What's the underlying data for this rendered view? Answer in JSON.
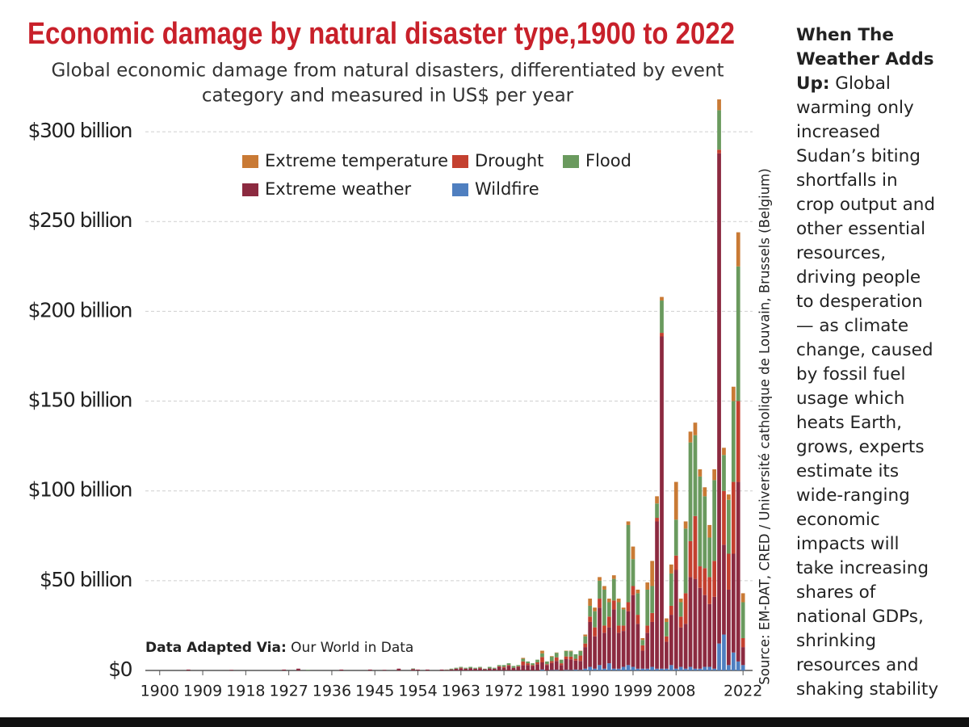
{
  "chart_data": {
    "type": "stacked-bar",
    "title": "Economic damage by natural disaster type,1900 to 2022",
    "subtitle": [
      "Global economic damage from natural disasters, differentiated by event",
      "category and measured in US$ per year"
    ],
    "x": [
      1900,
      1901,
      1902,
      1903,
      1904,
      1905,
      1906,
      1907,
      1908,
      1909,
      1910,
      1911,
      1912,
      1913,
      1914,
      1915,
      1916,
      1917,
      1918,
      1919,
      1920,
      1921,
      1922,
      1923,
      1924,
      1925,
      1926,
      1927,
      1928,
      1929,
      1930,
      1931,
      1932,
      1933,
      1934,
      1935,
      1936,
      1937,
      1938,
      1939,
      1940,
      1941,
      1942,
      1943,
      1944,
      1945,
      1946,
      1947,
      1948,
      1949,
      1950,
      1951,
      1952,
      1953,
      1954,
      1955,
      1956,
      1957,
      1958,
      1959,
      1960,
      1961,
      1962,
      1963,
      1964,
      1965,
      1966,
      1967,
      1968,
      1969,
      1970,
      1971,
      1972,
      1973,
      1974,
      1975,
      1976,
      1977,
      1978,
      1979,
      1980,
      1981,
      1982,
      1983,
      1984,
      1985,
      1986,
      1987,
      1988,
      1989,
      1990,
      1991,
      1992,
      1993,
      1994,
      1995,
      1996,
      1997,
      1998,
      1999,
      2000,
      2001,
      2002,
      2003,
      2004,
      2005,
      2006,
      2007,
      2008,
      2009,
      2010,
      2011,
      2012,
      2013,
      2014,
      2015,
      2016,
      2017,
      2018,
      2019,
      2020,
      2021,
      2022
    ],
    "series": [
      {
        "name": "Wildfire",
        "color": "#4f7fc0",
        "values": [
          0,
          0,
          0,
          0,
          0,
          0,
          0,
          0,
          0,
          0,
          0,
          0,
          0,
          0,
          0,
          0,
          0,
          0,
          0,
          0,
          0,
          0,
          0,
          0,
          0,
          0,
          0,
          0,
          0,
          0,
          0,
          0,
          0,
          0,
          0,
          0,
          0,
          0,
          0,
          0,
          0,
          0,
          0,
          0,
          0,
          0,
          0,
          0,
          0,
          0,
          0,
          0,
          0,
          0,
          0,
          0,
          0,
          0,
          0,
          0,
          0,
          0,
          0,
          0,
          0,
          0,
          0,
          0,
          0,
          0,
          0,
          0,
          0,
          0,
          0,
          0,
          0,
          0,
          0,
          0,
          0.5,
          0,
          0.2,
          0.3,
          0,
          0.3,
          0.2,
          0.5,
          0.3,
          1,
          2,
          1,
          3,
          1,
          4,
          1,
          1,
          2,
          3,
          2,
          1,
          1,
          1,
          2,
          1,
          1,
          1,
          3,
          1,
          2,
          1,
          2,
          1,
          1,
          2,
          2,
          1,
          15,
          20,
          3,
          10,
          5,
          3
        ]
      },
      {
        "name": "Extreme weather",
        "color": "#8c2a40",
        "values": [
          0,
          0,
          0,
          0,
          0,
          0,
          0.5,
          0,
          0,
          0,
          0,
          0,
          0,
          0,
          0,
          0.3,
          0,
          0,
          0,
          0,
          0,
          0,
          0,
          0,
          0,
          0,
          0.5,
          0,
          0,
          1,
          0,
          0,
          0,
          0,
          0,
          0,
          0,
          0,
          0.5,
          0,
          0,
          0,
          0,
          0,
          0.5,
          0,
          0,
          0.3,
          0,
          0,
          1,
          0,
          0,
          0.8,
          0.5,
          0,
          0.5,
          0,
          0,
          0.5,
          0.3,
          0.6,
          1,
          1.2,
          1,
          1.3,
          1,
          1.2,
          0.7,
          1.2,
          1,
          2,
          1.5,
          2.5,
          1.5,
          2,
          3,
          3,
          2.5,
          3.5,
          4,
          3,
          4,
          5,
          3,
          6,
          6,
          5,
          5,
          12,
          25,
          18,
          32,
          20,
          20,
          33,
          20,
          20,
          30,
          40,
          25,
          10,
          20,
          25,
          82,
          185,
          15,
          28,
          55,
          22,
          25,
          50,
          50,
          45,
          40,
          35,
          40,
          273,
          50,
          42,
          55,
          100,
          10
        ]
      },
      {
        "name": "Drought",
        "color": "#c4402f",
        "values": [
          0,
          0,
          0,
          0,
          0,
          0,
          0,
          0,
          0,
          0,
          0,
          0,
          0,
          0,
          0,
          0,
          0,
          0,
          0,
          0,
          0,
          0,
          0,
          0,
          0,
          0,
          0,
          0,
          0,
          0,
          0,
          0,
          0,
          0,
          0,
          0,
          0,
          0,
          0,
          0,
          0,
          0,
          0,
          0,
          0,
          0,
          0,
          0,
          0,
          0,
          0,
          0,
          0,
          0,
          0,
          0,
          0,
          0,
          0,
          0,
          0,
          0,
          0,
          0.3,
          0,
          0,
          0,
          0.3,
          0,
          0,
          0,
          0.3,
          0.5,
          0.5,
          0,
          0.3,
          2,
          1,
          0.5,
          1,
          3,
          0.5,
          1,
          2,
          1,
          1.5,
          1.5,
          1,
          3,
          2,
          3,
          5,
          5,
          4,
          6,
          5,
          4,
          3,
          5,
          5,
          5,
          3,
          4,
          5,
          2,
          2,
          3,
          5,
          8,
          6,
          17,
          20,
          35,
          12,
          15,
          15,
          20,
          2,
          30,
          20,
          40,
          45,
          5
        ]
      },
      {
        "name": "Flood",
        "color": "#6a9a5e",
        "values": [
          0,
          0,
          0,
          0,
          0,
          0,
          0,
          0,
          0,
          0,
          0,
          0,
          0,
          0,
          0,
          0,
          0,
          0,
          0,
          0,
          0,
          0,
          0,
          0,
          0,
          0,
          0,
          0,
          0,
          0,
          0,
          0.3,
          0,
          0,
          0,
          0,
          0,
          0,
          0,
          0,
          0,
          0,
          0,
          0,
          0,
          0,
          0,
          0,
          0,
          0,
          0,
          0,
          0,
          0.3,
          0,
          0,
          0,
          0,
          0,
          0,
          0.2,
          0.4,
          0.5,
          0.5,
          0.5,
          0.7,
          0.5,
          0.5,
          0.3,
          0.8,
          0.5,
          0.7,
          1,
          1,
          1,
          0.7,
          1.5,
          1,
          1,
          1.5,
          2,
          1.5,
          2.5,
          2.5,
          2,
          3,
          3,
          2.5,
          2.5,
          4,
          6,
          9,
          10,
          20,
          8,
          12,
          13,
          9,
          43,
          15,
          12,
          3,
          20,
          15,
          8,
          18,
          8,
          18,
          20,
          8,
          36,
          55,
          45,
          50,
          40,
          22,
          45,
          22,
          20,
          30,
          45,
          75,
          20
        ]
      },
      {
        "name": "Extreme temperature",
        "color": "#c97a35",
        "values": [
          0,
          0,
          0,
          0,
          0,
          0,
          0,
          0,
          0,
          0,
          0,
          0,
          0,
          0,
          0,
          0,
          0,
          0,
          0,
          0,
          0,
          0,
          0,
          0,
          0,
          0,
          0,
          0,
          0,
          0,
          0,
          0,
          0,
          0,
          0,
          0,
          0,
          0,
          0,
          0,
          0,
          0,
          0,
          0,
          0,
          0,
          0,
          0,
          0,
          0,
          0,
          0,
          0,
          0,
          0,
          0,
          0,
          0,
          0,
          0,
          0,
          0,
          0,
          0,
          0,
          0,
          0,
          0,
          0,
          0,
          0,
          0,
          0,
          0,
          0,
          0,
          0.5,
          0,
          0,
          0,
          1.5,
          0,
          0.3,
          0.2,
          0,
          0.2,
          0.3,
          0,
          0.2,
          1,
          4,
          2,
          2,
          2,
          2,
          2,
          2,
          1,
          2,
          7,
          2,
          1,
          4,
          14,
          4,
          2,
          2,
          5,
          21,
          2,
          4,
          6,
          7,
          4,
          5,
          7,
          6,
          6,
          4,
          3,
          8,
          19,
          5
        ]
      }
    ],
    "xlim": [
      1897,
      2024
    ],
    "xticks": [
      1900,
      1909,
      1918,
      1927,
      1936,
      1945,
      1954,
      1963,
      1972,
      1981,
      1990,
      1999,
      2008,
      2022
    ],
    "ylim": [
      0,
      320
    ],
    "yticks": [
      {
        "value": 0,
        "label": "$0"
      },
      {
        "value": 50,
        "label": "$50 billion"
      },
      {
        "value": 100,
        "label": "$100 billion"
      },
      {
        "value": 150,
        "label": "$150 billion"
      },
      {
        "value": 200,
        "label": "$200 billion"
      },
      {
        "value": 250,
        "label": "$250 billion"
      },
      {
        "value": 300,
        "label": "$300 billion"
      }
    ],
    "grid": true,
    "source": "Source: EM-DAT, CRED / Université catholique de Louvain, Brussels (Belgium)",
    "credit_label": "Data Adapted Via:",
    "credit": "Our World in Data"
  },
  "sidebar": {
    "heading": [
      "When The",
      "Weather Adds",
      "Up:"
    ],
    "body": [
      "Global",
      "warming only",
      "increased",
      "Sudan’s biting",
      "shortfalls in",
      "crop output and",
      "other essential",
      "resources,",
      "driving people",
      "to desperation",
      "— as climate",
      "change, caused",
      "by fossil fuel",
      "usage which",
      "heats Earth,",
      "grows, experts",
      "estimate its",
      "wide-ranging",
      "economic",
      "impacts will",
      "take increasing",
      "shares of",
      "national GDPs,",
      "shrinking",
      "resources and",
      "shaking stability"
    ]
  }
}
